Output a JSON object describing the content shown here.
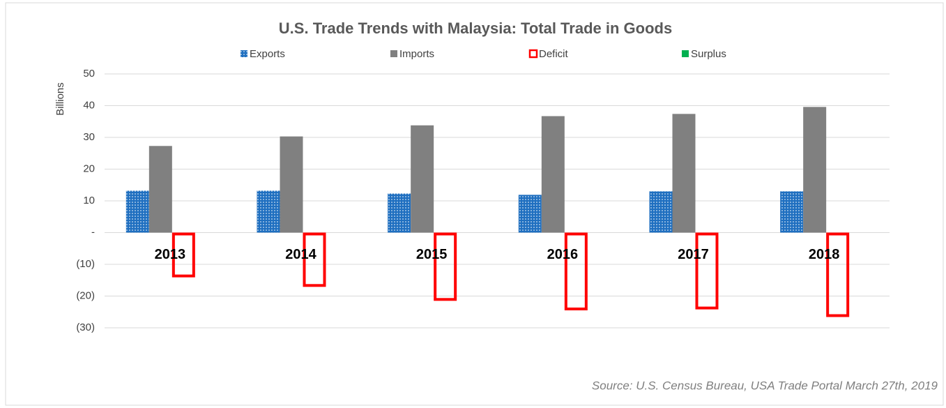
{
  "chart_data": {
    "type": "bar",
    "title": "U.S. Trade Trends with Malaysia: Total Trade in Goods",
    "y_label": "Billions",
    "source": "Source: U.S. Census Bureau, USA Trade Portal March 27th, 2019",
    "categories": [
      "2013",
      "2014",
      "2015",
      "2016",
      "2017",
      "2018"
    ],
    "series": [
      {
        "name": "Exports",
        "color": "#1f6fc0",
        "pattern": "dotted",
        "values": [
          13.2,
          13.2,
          12.3,
          11.9,
          13.0,
          13.0
        ]
      },
      {
        "name": "Imports",
        "color": "#808080",
        "values": [
          27.3,
          30.3,
          33.8,
          36.7,
          37.4,
          39.6
        ]
      },
      {
        "name": "Deficit",
        "color": "#ff0000",
        "outline": true,
        "values": [
          -14.1,
          -17.1,
          -21.5,
          -24.5,
          -24.2,
          -26.6
        ]
      },
      {
        "name": "Surplus",
        "color": "#00b050",
        "values": [
          null,
          null,
          null,
          null,
          null,
          null
        ]
      }
    ],
    "ylim": [
      -30,
      50
    ],
    "yticks": [
      {
        "value": -30,
        "label": "(30)"
      },
      {
        "value": -20,
        "label": "(20)"
      },
      {
        "value": -10,
        "label": "(10)"
      },
      {
        "value": 0,
        "label": "-"
      },
      10,
      20,
      30,
      40,
      50
    ],
    "grid": true,
    "legend": "top"
  }
}
